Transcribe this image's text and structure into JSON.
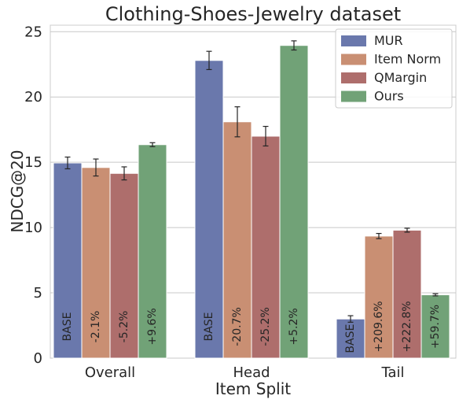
{
  "chart_data": {
    "type": "bar",
    "title": "Clothing-Shoes-Jewelry dataset",
    "xlabel": "Item Split",
    "ylabel": "NDCG@20",
    "ylim": [
      0,
      25.5
    ],
    "yticks": [
      0,
      5,
      10,
      15,
      20,
      25
    ],
    "grid": true,
    "legend_position": "top-right",
    "categories": [
      "Overall",
      "Head",
      "Tail"
    ],
    "series": [
      {
        "name": "MUR",
        "color": "#6a78ac",
        "values": [
          14.95,
          22.8,
          3.0
        ],
        "errors": [
          0.45,
          0.7,
          0.25
        ],
        "labels": [
          "BASE",
          "BASE",
          "BASE"
        ]
      },
      {
        "name": "Item Norm",
        "color": "#c98f73",
        "values": [
          14.6,
          18.1,
          9.35
        ],
        "errors": [
          0.65,
          1.15,
          0.2
        ],
        "labels": [
          "-2.1%",
          "-20.7%",
          "+209.6%"
        ]
      },
      {
        "name": "QMargin",
        "color": "#ae6e6c",
        "values": [
          14.15,
          17.0,
          9.8
        ],
        "errors": [
          0.5,
          0.75,
          0.15
        ],
        "labels": [
          "-5.2%",
          "-25.2%",
          "+222.8%"
        ]
      },
      {
        "name": "Ours",
        "color": "#71a277",
        "values": [
          16.35,
          23.95,
          4.85
        ],
        "errors": [
          0.15,
          0.35,
          0.08
        ],
        "labels": [
          "+9.6%",
          "+5.2%",
          "+59.7%"
        ]
      }
    ]
  }
}
